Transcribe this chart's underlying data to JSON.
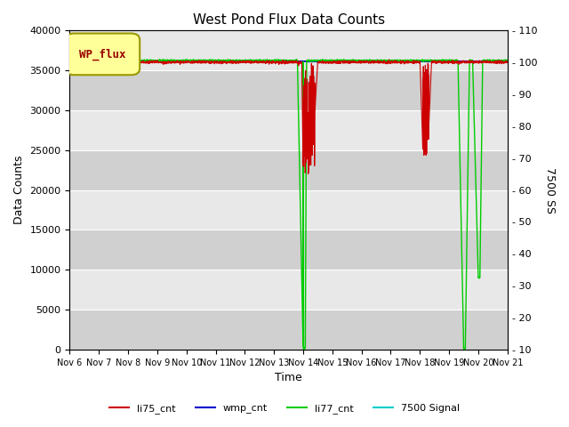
{
  "title": "West Pond Flux Data Counts",
  "xlabel": "Time",
  "ylabel_left": "Data Counts",
  "ylabel_right": "7500 SS",
  "legend_label": "WP_flux",
  "ylim_left": [
    0,
    40000
  ],
  "ylim_right": [
    10,
    110
  ],
  "yticks_left": [
    0,
    5000,
    10000,
    15000,
    20000,
    25000,
    30000,
    35000,
    40000
  ],
  "yticks_right": [
    10,
    20,
    30,
    40,
    50,
    60,
    70,
    80,
    90,
    100,
    110
  ],
  "xtick_labels": [
    "Nov 6",
    "Nov 7",
    "Nov 8",
    "Nov 9",
    "Nov 10",
    "Nov 11",
    "Nov 12",
    "Nov 13",
    "Nov 14",
    "Nov 15",
    "Nov 16",
    "Nov 17",
    "Nov 18",
    "Nov 19",
    "Nov 20",
    "Nov 21"
  ],
  "bg_color_light": "#e8e8e8",
  "bg_color_dark": "#d0d0d0",
  "colors": {
    "li75_cnt": "#cc0000",
    "wmp_cnt": "#0000cc",
    "li77_cnt": "#00cc00",
    "signal7500": "#00cccc"
  },
  "wp_flux_box_color": "#ffff99",
  "wp_flux_text_color": "#990000",
  "wp_flux_box_edge": "#999900"
}
